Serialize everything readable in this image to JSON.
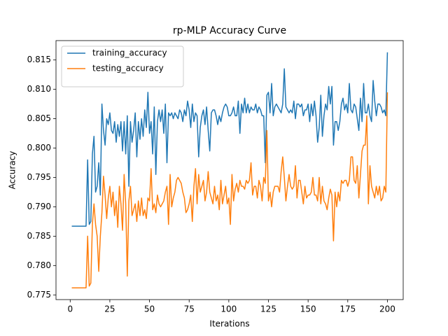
{
  "chart_data": {
    "type": "line",
    "title": "rp-MLP Accuracy Curve",
    "x_label": "Iterations",
    "y_label": "Accuracy",
    "x": [
      1,
      2,
      3,
      4,
      5,
      6,
      7,
      8,
      9,
      10,
      11,
      12,
      13,
      14,
      15,
      16,
      17,
      18,
      19,
      20,
      21,
      22,
      23,
      24,
      25,
      26,
      27,
      28,
      29,
      30,
      31,
      32,
      33,
      34,
      35,
      36,
      37,
      38,
      39,
      40,
      41,
      42,
      43,
      44,
      45,
      46,
      47,
      48,
      49,
      50,
      51,
      52,
      53,
      54,
      55,
      56,
      57,
      58,
      59,
      60,
      61,
      62,
      63,
      64,
      65,
      66,
      67,
      68,
      69,
      70,
      71,
      72,
      73,
      74,
      75,
      76,
      77,
      78,
      79,
      80,
      81,
      82,
      83,
      84,
      85,
      86,
      87,
      88,
      89,
      90,
      91,
      92,
      93,
      94,
      95,
      96,
      97,
      98,
      99,
      100,
      101,
      102,
      103,
      104,
      105,
      106,
      107,
      108,
      109,
      110,
      111,
      112,
      113,
      114,
      115,
      116,
      117,
      118,
      119,
      120,
      121,
      122,
      123,
      124,
      125,
      126,
      127,
      128,
      129,
      130,
      131,
      132,
      133,
      134,
      135,
      136,
      137,
      138,
      139,
      140,
      141,
      142,
      143,
      144,
      145,
      146,
      147,
      148,
      149,
      150,
      151,
      152,
      153,
      154,
      155,
      156,
      157,
      158,
      159,
      160,
      161,
      162,
      163,
      164,
      165,
      166,
      167,
      168,
      169,
      170,
      171,
      172,
      173,
      174,
      175,
      176,
      177,
      178,
      179,
      180,
      181,
      182,
      183,
      184,
      185,
      186,
      187,
      188,
      189,
      190,
      191,
      192,
      193,
      194,
      195,
      196,
      197,
      198,
      199,
      200
    ],
    "series": [
      {
        "name": "training_accuracy",
        "color": "#1f77b4",
        "values": [
          0.7867,
          0.7867,
          0.7867,
          0.7867,
          0.7867,
          0.7867,
          0.7867,
          0.7867,
          0.7867,
          0.7867,
          0.798,
          0.787,
          0.7875,
          0.799,
          0.802,
          0.7925,
          0.7935,
          0.7975,
          0.792,
          0.8075,
          0.803,
          0.8005,
          0.805,
          0.804,
          0.806,
          0.803,
          0.8025,
          0.8045,
          0.801,
          0.804,
          0.802,
          0.8045,
          0.7995,
          0.8045,
          0.799,
          0.8055,
          0.7935,
          0.8045,
          0.801,
          0.803,
          0.806,
          0.7985,
          0.8045,
          0.8015,
          0.805,
          0.802,
          0.8065,
          0.8035,
          0.8095,
          0.8025,
          0.8045,
          0.799,
          0.807,
          0.7955,
          0.8045,
          0.8065,
          0.8045,
          0.8065,
          0.8025,
          0.8075,
          0.7975,
          0.806,
          0.8055,
          0.806,
          0.805,
          0.806,
          0.8055,
          0.805,
          0.8065,
          0.806,
          0.8045,
          0.8065,
          0.8055,
          0.808,
          0.8065,
          0.8035,
          0.8075,
          0.8045,
          0.806,
          0.8055,
          0.7985,
          0.8035,
          0.8055,
          0.8065,
          0.804,
          0.807,
          0.803,
          0.7995,
          0.806,
          0.8065,
          0.8065,
          0.8055,
          0.804,
          0.8055,
          0.8045,
          0.806,
          0.807,
          0.8075,
          0.807,
          0.8055,
          0.8055,
          0.806,
          0.807,
          0.8055,
          0.8055,
          0.808,
          0.8025,
          0.8075,
          0.806,
          0.8085,
          0.806,
          0.8075,
          0.806,
          0.807,
          0.8065,
          0.8065,
          0.8075,
          0.806,
          0.807,
          0.8065,
          0.8055,
          0.8055,
          0.7975,
          0.809,
          0.8095,
          0.806,
          0.811,
          0.8055,
          0.807,
          0.8075,
          0.807,
          0.8065,
          0.806,
          0.8075,
          0.8135,
          0.807,
          0.8065,
          0.806,
          0.8065,
          0.806,
          0.808,
          0.805,
          0.8075,
          0.8075,
          0.807,
          0.8075,
          0.8055,
          0.8065,
          0.8065,
          0.8075,
          0.8045,
          0.8075,
          0.8055,
          0.808,
          0.8055,
          0.801,
          0.8035,
          0.809,
          0.802,
          0.8055,
          0.8075,
          0.8065,
          0.8105,
          0.8075,
          0.8105,
          0.8005,
          0.8045,
          0.8045,
          0.803,
          0.8045,
          0.8075,
          0.8085,
          0.8065,
          0.8075,
          0.806,
          0.811,
          0.8065,
          0.806,
          0.8075,
          0.807,
          0.805,
          0.803,
          0.8085,
          0.8045,
          0.811,
          0.806,
          0.806,
          0.8075,
          0.8055,
          0.8045,
          0.8115,
          0.808,
          0.8055,
          0.8075,
          0.8075,
          0.807,
          0.806,
          0.8065,
          0.8055,
          0.8163
        ]
      },
      {
        "name": "testing_accuracy",
        "color": "#ff7f0e",
        "values": [
          0.7762,
          0.7762,
          0.7762,
          0.7762,
          0.7762,
          0.7762,
          0.7762,
          0.7762,
          0.7762,
          0.7762,
          0.785,
          0.7765,
          0.777,
          0.787,
          0.7905,
          0.787,
          0.785,
          0.779,
          0.785,
          0.789,
          0.7952,
          0.792,
          0.788,
          0.7915,
          0.7935,
          0.79,
          0.7925,
          0.7885,
          0.791,
          0.7865,
          0.7935,
          0.7905,
          0.786,
          0.7955,
          0.7905,
          0.7782,
          0.791,
          0.7935,
          0.7885,
          0.7895,
          0.7905,
          0.7875,
          0.791,
          0.7885,
          0.7915,
          0.7885,
          0.7895,
          0.788,
          0.7915,
          0.791,
          0.7965,
          0.7895,
          0.7905,
          0.789,
          0.792,
          0.7905,
          0.79,
          0.7905,
          0.791,
          0.7925,
          0.7935,
          0.787,
          0.7955,
          0.79,
          0.7915,
          0.7925,
          0.7945,
          0.795,
          0.7945,
          0.794,
          0.7925,
          0.7915,
          0.789,
          0.7895,
          0.7905,
          0.792,
          0.7875,
          0.7935,
          0.7965,
          0.7905,
          0.7955,
          0.7925,
          0.7935,
          0.7945,
          0.791,
          0.7925,
          0.796,
          0.7925,
          0.7915,
          0.7905,
          0.7935,
          0.791,
          0.792,
          0.7895,
          0.7945,
          0.7905,
          0.792,
          0.7935,
          0.7905,
          0.7915,
          0.787,
          0.7955,
          0.791,
          0.793,
          0.794,
          0.7925,
          0.7945,
          0.7935,
          0.7935,
          0.793,
          0.7945,
          0.794,
          0.7945,
          0.7975,
          0.792,
          0.7935,
          0.7935,
          0.7915,
          0.7945,
          0.7935,
          0.791,
          0.795,
          0.794,
          0.803,
          0.791,
          0.7925,
          0.79,
          0.7925,
          0.7935,
          0.7935,
          0.7935,
          0.7925,
          0.796,
          0.7985,
          0.795,
          0.791,
          0.7935,
          0.7955,
          0.7935,
          0.793,
          0.7935,
          0.797,
          0.7915,
          0.7945,
          0.7945,
          0.7925,
          0.7905,
          0.7935,
          0.7915,
          0.792,
          0.792,
          0.7925,
          0.795,
          0.792,
          0.792,
          0.791,
          0.795,
          0.7905,
          0.7935,
          0.791,
          0.7905,
          0.7895,
          0.7915,
          0.793,
          0.792,
          0.7842,
          0.7925,
          0.79,
          0.7925,
          0.791,
          0.7945,
          0.794,
          0.7945,
          0.7945,
          0.7935,
          0.7945,
          0.7985,
          0.7985,
          0.7945,
          0.794,
          0.797,
          0.7915,
          0.7955,
          0.7995,
          0.8005,
          0.8005,
          0.8055,
          0.7905,
          0.797,
          0.7935,
          0.7925,
          0.7915,
          0.7935,
          0.792,
          0.7935,
          0.791,
          0.7915,
          0.7935,
          0.7925,
          0.8095
        ]
      }
    ],
    "xlim": [
      -8.95,
      209.95
    ],
    "xticks": [
      0,
      25,
      50,
      75,
      100,
      125,
      150,
      175,
      200
    ],
    "ylim": [
      0.7742,
      0.8183
    ],
    "yticks": [
      0.775,
      {
        "value": 0.78,
        "label": "0.780"
      },
      0.785,
      {
        "value": 0.79,
        "label": "0.790"
      },
      0.795,
      {
        "value": 0.8,
        "label": "0.800"
      },
      0.805,
      {
        "value": 0.81,
        "label": "0.810"
      },
      0.815
    ],
    "legend": "upper left"
  }
}
